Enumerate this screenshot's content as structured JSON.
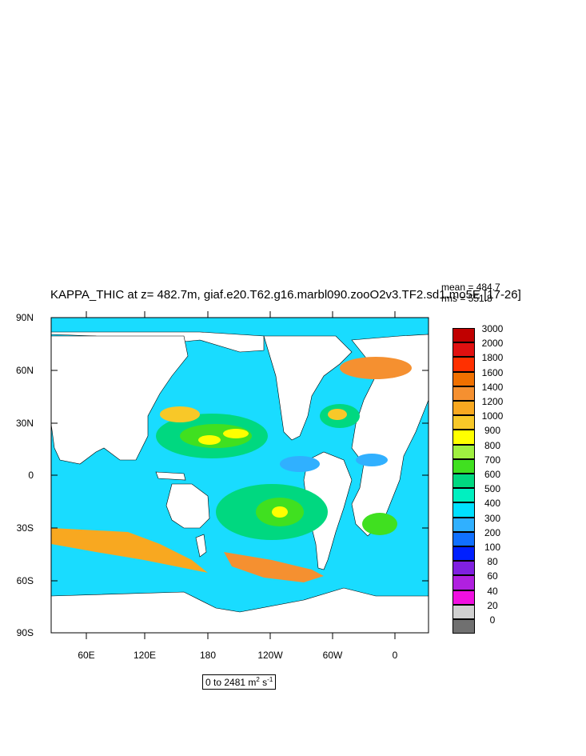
{
  "title": "KAPPA_THIC at z= 482.7m, giaf.e20.T62.g16.marbl090.zooO2v3.TF2.sd1.mo5E [17-26]",
  "stats": {
    "mean": "mean = 484.7",
    "rms": "rms = 551.8"
  },
  "axes": {
    "y_ticks": [
      "90N",
      "60N",
      "30N",
      "0",
      "30S",
      "60S",
      "90S"
    ],
    "x_ticks": [
      "60E",
      "120E",
      "180",
      "120W",
      "60W",
      "0"
    ]
  },
  "range_note": {
    "prefix": "0 to 2481 m",
    "sup1": "2",
    "mid": " s",
    "sup2": "-1"
  },
  "colorbar": {
    "labels": [
      "3000",
      "2000",
      "1800",
      "1600",
      "1400",
      "1200",
      "1000",
      "900",
      "800",
      "700",
      "600",
      "500",
      "400",
      "300",
      "200",
      "100",
      "80",
      "60",
      "40",
      "20",
      "0"
    ],
    "colors": [
      "#c00000",
      "#e01010",
      "#ff3000",
      "#f07000",
      "#f59030",
      "#f8a820",
      "#f8c828",
      "#ffff00",
      "#a0f040",
      "#40e020",
      "#00d880",
      "#00f0c0",
      "#00e0ff",
      "#30b0ff",
      "#1070ff",
      "#0020ff",
      "#8020e0",
      "#b020e0",
      "#f010e0",
      "#d0d0d0",
      "#707070"
    ]
  },
  "colors": {
    "land": "#ffffff",
    "ocean_base": "#19dcff"
  }
}
